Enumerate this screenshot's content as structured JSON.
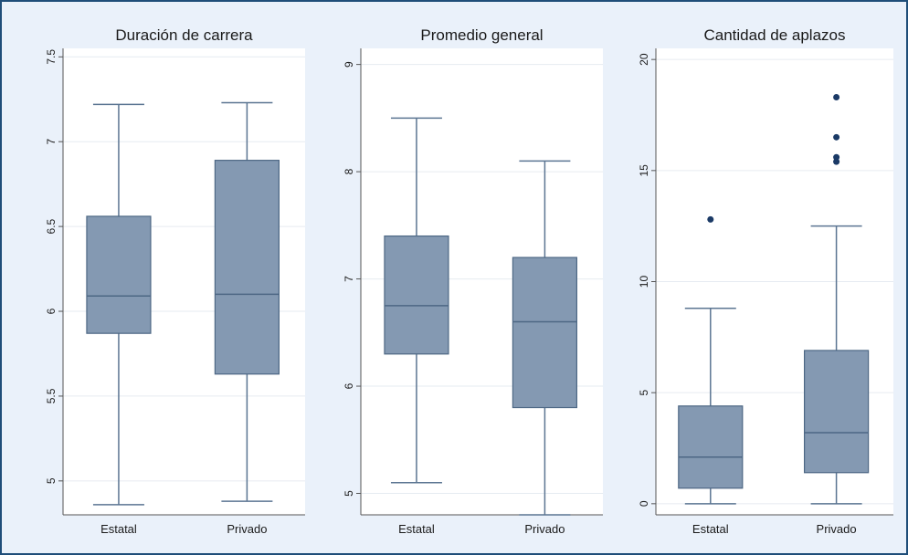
{
  "chart_data": [
    {
      "type": "box",
      "title": "Duración de carrera",
      "ylim": [
        4.8,
        7.55
      ],
      "yticks": [
        "5",
        "5.5",
        "6",
        "6.5",
        "7",
        "7.5"
      ],
      "categories": [
        "Estatal",
        "Privado"
      ],
      "boxes": [
        {
          "min": 4.86,
          "q1": 5.87,
          "median": 6.09,
          "q3": 6.56,
          "max": 7.22,
          "outliers": []
        },
        {
          "min": 4.88,
          "q1": 5.63,
          "median": 6.1,
          "q3": 6.89,
          "max": 7.23,
          "outliers": []
        }
      ]
    },
    {
      "type": "box",
      "title": "Promedio general",
      "ylim": [
        4.8,
        9.15
      ],
      "yticks": [
        "5",
        "6",
        "7",
        "8",
        "9"
      ],
      "categories": [
        "Estatal",
        "Privado"
      ],
      "boxes": [
        {
          "min": 5.1,
          "q1": 6.3,
          "median": 6.75,
          "q3": 7.4,
          "max": 8.5,
          "outliers": []
        },
        {
          "min": 4.8,
          "q1": 5.8,
          "median": 6.6,
          "q3": 7.2,
          "max": 8.1,
          "outliers": []
        }
      ]
    },
    {
      "type": "box",
      "title": "Cantidad de aplazos",
      "ylim": [
        -0.5,
        20.5
      ],
      "yticks": [
        "0",
        "5",
        "10",
        "15",
        "20"
      ],
      "categories": [
        "Estatal",
        "Privado"
      ],
      "boxes": [
        {
          "min": 0,
          "q1": 0.7,
          "median": 2.1,
          "q3": 4.4,
          "max": 8.8,
          "outliers": [
            12.8
          ]
        },
        {
          "min": 0,
          "q1": 1.4,
          "median": 3.2,
          "q3": 6.9,
          "max": 12.5,
          "outliers": [
            15.4,
            15.6,
            16.5,
            18.3
          ]
        }
      ]
    }
  ],
  "colors": {
    "box_fill": "#8499b2",
    "box_stroke": "#4d6784",
    "whisker": "#5b7592",
    "outlier": "#1b3a66",
    "plot_bg": "#ffffff",
    "grid": "#e6ebf1"
  }
}
